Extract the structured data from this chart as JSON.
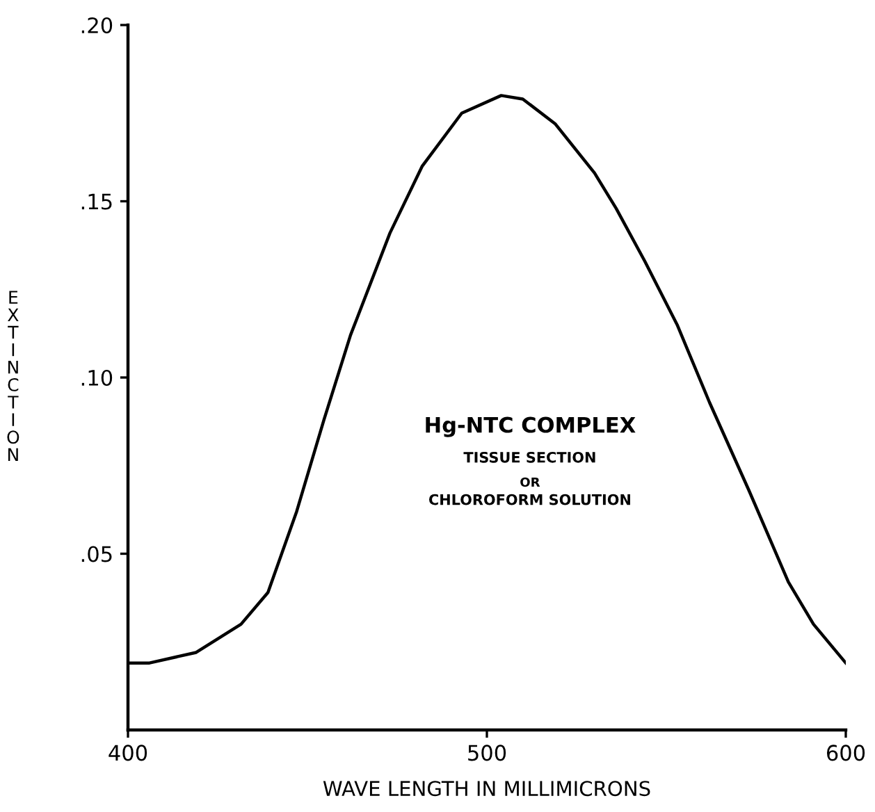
{
  "chart_data": {
    "type": "line",
    "xlabel": "WAVE LENGTH IN MILLIMICRONS",
    "ylabel": "EXTINCTION",
    "x": [
      400,
      406,
      419,
      431.5,
      439,
      447,
      454.6,
      462,
      473,
      482,
      493,
      504,
      510,
      519,
      530,
      536,
      544,
      553,
      562,
      573,
      584,
      591,
      600
    ],
    "series": [
      {
        "color": "#000000",
        "values": [
          0.019,
          0.019,
          0.022,
          0.03,
          0.039,
          0.062,
          0.088,
          0.112,
          0.141,
          0.16,
          0.175,
          0.18,
          0.179,
          0.172,
          0.158,
          0.148,
          0.133,
          0.115,
          0.093,
          0.068,
          0.042,
          0.03,
          0.019
        ]
      }
    ],
    "xlim": [
      400,
      600
    ],
    "xticks": [
      400,
      500,
      600
    ],
    "ylim": [
      0,
      0.2
    ],
    "yticks": [
      {
        "value": 0.05,
        "label": ".05"
      },
      {
        "value": 0.1,
        "label": ".10"
      },
      {
        "value": 0.15,
        "label": ".15"
      },
      {
        "value": 0.2,
        "label": ".20"
      }
    ],
    "annotations": [
      "Hg-NTC COMPLEX",
      "TISSUE SECTION",
      "OR",
      "CHLOROFORM SOLUTION"
    ],
    "grid": false,
    "legend": false,
    "marker": "none",
    "line_style": "solid"
  }
}
